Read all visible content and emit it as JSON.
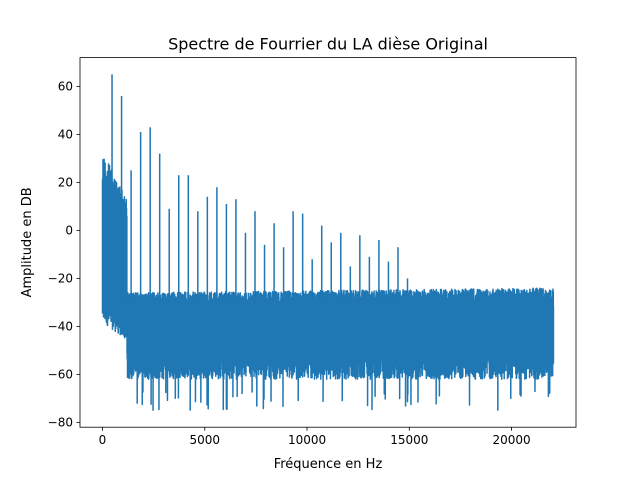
{
  "chart_data": {
    "type": "line",
    "title": "Spectre de Fourrier du LA dièse Original",
    "xlabel": "Fréquence en Hz",
    "ylabel": "Amplitude en DB",
    "xlim": [
      -1100,
      23150
    ],
    "ylim": [
      -82,
      72
    ],
    "x_ticks": [
      0,
      5000,
      10000,
      15000,
      20000
    ],
    "y_ticks": [
      -80,
      -60,
      -40,
      -20,
      0,
      20,
      40,
      60
    ],
    "x_tick_labels": [
      "0",
      "5000",
      "10000",
      "15000",
      "20000"
    ],
    "y_tick_labels": [
      "−80",
      "−60",
      "−40",
      "−20",
      "0",
      "20",
      "40",
      "60"
    ],
    "grid": false,
    "legend": "none",
    "series": [
      {
        "color": "#1f77b4",
        "x_range": [
          0,
          22050
        ],
        "noise_floor": {
          "upper_envelope": -22,
          "lower_envelope": -62,
          "lowest_dips": -75
        },
        "low_frequency_band": {
          "x": [
            0,
            1200
          ],
          "y_min": -46,
          "y_max": 33
        },
        "peaks": [
          {
            "x": 466,
            "y": 65
          },
          {
            "x": 932,
            "y": 56
          },
          {
            "x": 1398,
            "y": 25
          },
          {
            "x": 1864,
            "y": 41
          },
          {
            "x": 2330,
            "y": 43
          },
          {
            "x": 2796,
            "y": 32
          },
          {
            "x": 3262,
            "y": 9
          },
          {
            "x": 3728,
            "y": 23
          },
          {
            "x": 4194,
            "y": 23
          },
          {
            "x": 4660,
            "y": 8
          },
          {
            "x": 5126,
            "y": 14
          },
          {
            "x": 5592,
            "y": 18
          },
          {
            "x": 6058,
            "y": 11
          },
          {
            "x": 6524,
            "y": 13
          },
          {
            "x": 6990,
            "y": -1
          },
          {
            "x": 7456,
            "y": 8
          },
          {
            "x": 7922,
            "y": -6
          },
          {
            "x": 8388,
            "y": 3
          },
          {
            "x": 8854,
            "y": -7
          },
          {
            "x": 9320,
            "y": 8
          },
          {
            "x": 9786,
            "y": 7
          },
          {
            "x": 10252,
            "y": -12
          },
          {
            "x": 10718,
            "y": 2
          },
          {
            "x": 11184,
            "y": -5
          },
          {
            "x": 11650,
            "y": -1
          },
          {
            "x": 12116,
            "y": -15
          },
          {
            "x": 12582,
            "y": -2
          },
          {
            "x": 13048,
            "y": -11
          },
          {
            "x": 13514,
            "y": -4
          },
          {
            "x": 13980,
            "y": -13
          },
          {
            "x": 14446,
            "y": -7
          },
          {
            "x": 14912,
            "y": -20
          }
        ]
      }
    ]
  }
}
